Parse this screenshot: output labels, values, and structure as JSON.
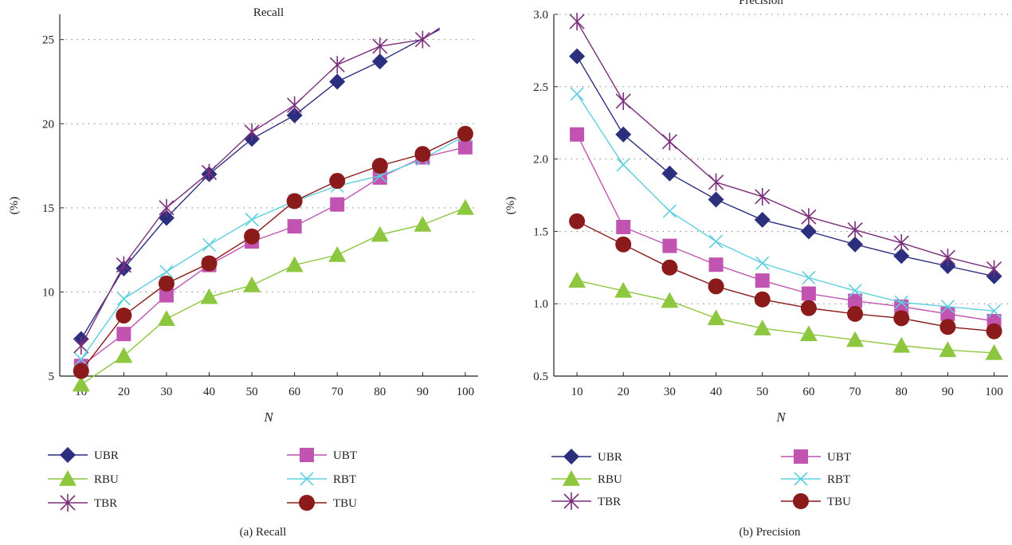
{
  "chart_data": [
    {
      "type": "line",
      "title": "Recall",
      "caption": "(a)  Recall",
      "xlabel": "N",
      "ylabel": "(%)",
      "x": [
        10,
        20,
        30,
        40,
        50,
        60,
        70,
        80,
        90,
        100
      ],
      "xlim": [
        5,
        103
      ],
      "ylim": [
        5,
        26.5
      ],
      "yticks": [
        5,
        10,
        15,
        20,
        25
      ],
      "grid": "horizontal dotted",
      "legend": "below, two columns",
      "series": [
        {
          "name": "UBR",
          "color": "#2b2f7e",
          "marker": "diamond",
          "values": [
            7.2,
            11.4,
            14.4,
            17.0,
            19.1,
            20.5,
            22.5,
            23.7,
            null,
            null
          ],
          "tail": [
            [
              94,
              25.6
            ]
          ]
        },
        {
          "name": "RBU",
          "color": "#8dc63f",
          "marker": "triangle",
          "values": [
            4.5,
            6.2,
            8.4,
            9.7,
            10.4,
            11.6,
            12.2,
            13.4,
            14.0,
            15.0
          ]
        },
        {
          "name": "TBR",
          "color": "#7a2f7a",
          "marker": "star",
          "values": [
            6.8,
            11.6,
            15.0,
            17.1,
            19.5,
            21.1,
            23.5,
            24.6,
            25.0,
            null
          ],
          "tail": [
            [
              94,
              25.7
            ]
          ]
        },
        {
          "name": "UBT",
          "color": "#c154b0",
          "marker": "square",
          "values": [
            5.6,
            7.5,
            9.8,
            11.6,
            13.0,
            13.9,
            15.2,
            16.8,
            18.0,
            18.6
          ]
        },
        {
          "name": "RBT",
          "color": "#5ecfe0",
          "marker": "x",
          "values": [
            6.0,
            9.6,
            11.2,
            12.8,
            14.3,
            15.4,
            16.3,
            16.9,
            17.9,
            19.3
          ]
        },
        {
          "name": "TBU",
          "color": "#8b1a1a",
          "marker": "circle",
          "values": [
            5.3,
            8.6,
            10.5,
            11.7,
            13.3,
            15.4,
            16.6,
            17.5,
            18.2,
            19.4
          ]
        }
      ]
    },
    {
      "type": "line",
      "title": "Precision",
      "caption": "(b)  Precision",
      "xlabel": "N",
      "ylabel": "(%)",
      "x": [
        10,
        20,
        30,
        40,
        50,
        60,
        70,
        80,
        90,
        100
      ],
      "xlim": [
        5,
        103
      ],
      "ylim": [
        0.5,
        3.0
      ],
      "yticks": [
        0.5,
        1.0,
        1.5,
        2.0,
        2.5,
        3.0
      ],
      "grid": "horizontal dotted",
      "legend": "below, two columns",
      "series": [
        {
          "name": "UBR",
          "color": "#2b2f7e",
          "marker": "diamond",
          "values": [
            2.71,
            2.17,
            1.9,
            1.72,
            1.58,
            1.5,
            1.41,
            1.33,
            1.26,
            1.19
          ]
        },
        {
          "name": "RBU",
          "color": "#8dc63f",
          "marker": "triangle",
          "values": [
            1.16,
            1.09,
            1.02,
            0.9,
            0.83,
            0.79,
            0.75,
            0.71,
            0.68,
            0.66
          ]
        },
        {
          "name": "TBR",
          "color": "#7a2f7a",
          "marker": "star",
          "values": [
            2.95,
            2.4,
            2.12,
            1.84,
            1.74,
            1.6,
            1.51,
            1.42,
            1.32,
            1.24
          ]
        },
        {
          "name": "UBT",
          "color": "#c154b0",
          "marker": "square",
          "values": [
            2.17,
            1.53,
            1.4,
            1.27,
            1.16,
            1.07,
            1.02,
            0.98,
            0.93,
            0.88
          ]
        },
        {
          "name": "RBT",
          "color": "#5ecfe0",
          "marker": "x",
          "values": [
            2.45,
            1.96,
            1.64,
            1.43,
            1.28,
            1.18,
            1.09,
            1.01,
            0.98,
            0.95
          ]
        },
        {
          "name": "TBU",
          "color": "#8b1a1a",
          "marker": "circle",
          "values": [
            1.57,
            1.41,
            1.25,
            1.12,
            1.03,
            0.97,
            0.93,
            0.9,
            0.84,
            0.81
          ]
        }
      ]
    }
  ]
}
